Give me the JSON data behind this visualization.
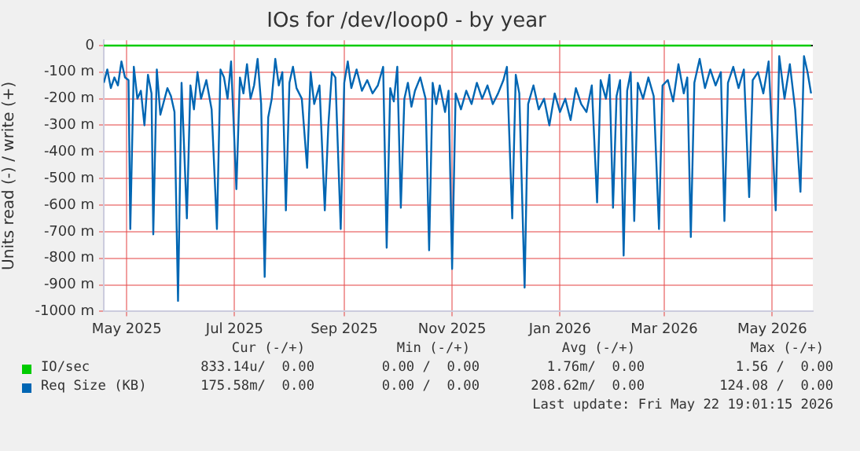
{
  "chart_data": {
    "type": "line",
    "title": "IOs for /dev/loop0 - by year",
    "ylabel": "Units read (-) / write (+)",
    "xlim": [
      "2025-04-18",
      "2026-05-24"
    ],
    "xticks": [
      {
        "value": "2025-05-01",
        "label": "May 2025"
      },
      {
        "value": "2025-07-01",
        "label": "Jul 2025"
      },
      {
        "value": "2025-09-01",
        "label": "Sep 2025"
      },
      {
        "value": "2025-11-01",
        "label": "Nov 2025"
      },
      {
        "value": "2026-01-01",
        "label": "Jan 2026"
      },
      {
        "value": "2026-03-01",
        "label": "Mar 2026"
      },
      {
        "value": "2026-05-01",
        "label": "May 2026"
      }
    ],
    "ylim": [
      -1000,
      20
    ],
    "yticks": [
      0,
      {
        "value": -100,
        "label": "-100 m"
      },
      {
        "value": -200,
        "label": "-200 m"
      },
      {
        "value": -300,
        "label": "-300 m"
      },
      {
        "value": -400,
        "label": "-400 m"
      },
      {
        "value": -500,
        "label": "-500 m"
      },
      {
        "value": -600,
        "label": "-600 m"
      },
      {
        "value": -700,
        "label": "-700 m"
      },
      {
        "value": -800,
        "label": "-800 m"
      },
      {
        "value": -900,
        "label": "-900 m"
      },
      {
        "value": -1000,
        "label": "-1000 m"
      }
    ],
    "grid": true,
    "legend": "bottom",
    "marker": "none",
    "line_style": "solid",
    "ref_lines": [
      {
        "axis": "y",
        "value": 0,
        "color": "#000000"
      }
    ],
    "series": [
      {
        "name": "IO/sec",
        "color": "#00cc00",
        "x": [
          "2025-04-18",
          "2026-05-23"
        ],
        "values": [
          0,
          0
        ]
      },
      {
        "name": "Req Size (KB)",
        "color": "#0066b3",
        "x": [
          "2025-04-18",
          "2025-04-20",
          "2025-04-22",
          "2025-04-24",
          "2025-04-26",
          "2025-04-28",
          "2025-04-30",
          "2025-05-02",
          "2025-05-03",
          "2025-05-05",
          "2025-05-07",
          "2025-05-09",
          "2025-05-11",
          "2025-05-13",
          "2025-05-15",
          "2025-05-16",
          "2025-05-18",
          "2025-05-20",
          "2025-05-22",
          "2025-05-24",
          "2025-05-26",
          "2025-05-28",
          "2025-05-30",
          "2025-06-01",
          "2025-06-04",
          "2025-06-06",
          "2025-06-08",
          "2025-06-10",
          "2025-06-12",
          "2025-06-15",
          "2025-06-18",
          "2025-06-21",
          "2025-06-23",
          "2025-06-25",
          "2025-06-27",
          "2025-06-29",
          "2025-07-02",
          "2025-07-04",
          "2025-07-06",
          "2025-07-08",
          "2025-07-10",
          "2025-07-12",
          "2025-07-14",
          "2025-07-16",
          "2025-07-18",
          "2025-07-20",
          "2025-07-22",
          "2025-07-24",
          "2025-07-26",
          "2025-07-28",
          "2025-07-30",
          "2025-08-01",
          "2025-08-03",
          "2025-08-05",
          "2025-08-08",
          "2025-08-11",
          "2025-08-13",
          "2025-08-15",
          "2025-08-18",
          "2025-08-21",
          "2025-08-23",
          "2025-08-25",
          "2025-08-27",
          "2025-08-30",
          "2025-09-01",
          "2025-09-03",
          "2025-09-05",
          "2025-09-08",
          "2025-09-11",
          "2025-09-14",
          "2025-09-17",
          "2025-09-20",
          "2025-09-23",
          "2025-09-25",
          "2025-09-27",
          "2025-09-29",
          "2025-10-01",
          "2025-10-03",
          "2025-10-05",
          "2025-10-07",
          "2025-10-09",
          "2025-10-11",
          "2025-10-14",
          "2025-10-17",
          "2025-10-19",
          "2025-10-21",
          "2025-10-23",
          "2025-10-25",
          "2025-10-28",
          "2025-10-30",
          "2025-11-01",
          "2025-11-03",
          "2025-11-06",
          "2025-11-09",
          "2025-11-12",
          "2025-11-15",
          "2025-11-18",
          "2025-11-21",
          "2025-11-24",
          "2025-11-27",
          "2025-11-30",
          "2025-12-02",
          "2025-12-05",
          "2025-12-07",
          "2025-12-09",
          "2025-12-12",
          "2025-12-14",
          "2025-12-17",
          "2025-12-20",
          "2025-12-23",
          "2025-12-26",
          "2025-12-29",
          "2026-01-01",
          "2026-01-04",
          "2026-01-07",
          "2026-01-10",
          "2026-01-13",
          "2026-01-16",
          "2026-01-19",
          "2026-01-22",
          "2026-01-24",
          "2026-01-27",
          "2026-01-29",
          "2026-01-31",
          "2026-02-02",
          "2026-02-04",
          "2026-02-06",
          "2026-02-08",
          "2026-02-10",
          "2026-02-12",
          "2026-02-14",
          "2026-02-17",
          "2026-02-20",
          "2026-02-23",
          "2026-02-26",
          "2026-02-28",
          "2026-03-03",
          "2026-03-06",
          "2026-03-09",
          "2026-03-12",
          "2026-03-14",
          "2026-03-16",
          "2026-03-18",
          "2026-03-21",
          "2026-03-24",
          "2026-03-27",
          "2026-03-30",
          "2026-04-02",
          "2026-04-04",
          "2026-04-06",
          "2026-04-09",
          "2026-04-12",
          "2026-04-15",
          "2026-04-18",
          "2026-04-20",
          "2026-04-23",
          "2026-04-26",
          "2026-04-29",
          "2026-05-03",
          "2026-05-05",
          "2026-05-08",
          "2026-05-11",
          "2026-05-14",
          "2026-05-17",
          "2026-05-19",
          "2026-05-21",
          "2026-05-23"
        ],
        "values": [
          -140,
          -90,
          -160,
          -120,
          -150,
          -60,
          -120,
          -130,
          -690,
          -80,
          -200,
          -170,
          -300,
          -110,
          -180,
          -710,
          -90,
          -260,
          -210,
          -160,
          -190,
          -250,
          -960,
          -140,
          -650,
          -150,
          -240,
          -100,
          -200,
          -130,
          -240,
          -690,
          -90,
          -120,
          -200,
          -60,
          -540,
          -120,
          -180,
          -70,
          -200,
          -150,
          -50,
          -220,
          -870,
          -270,
          -200,
          -50,
          -150,
          -100,
          -620,
          -140,
          -80,
          -160,
          -200,
          -460,
          -100,
          -220,
          -150,
          -620,
          -300,
          -100,
          -120,
          -690,
          -140,
          -60,
          -160,
          -90,
          -170,
          -130,
          -180,
          -150,
          -80,
          -760,
          -160,
          -210,
          -80,
          -610,
          -200,
          -140,
          -230,
          -170,
          -120,
          -200,
          -770,
          -140,
          -220,
          -150,
          -250,
          -170,
          -840,
          -180,
          -240,
          -170,
          -220,
          -140,
          -200,
          -150,
          -220,
          -180,
          -130,
          -80,
          -650,
          -110,
          -180,
          -910,
          -220,
          -150,
          -240,
          -200,
          -300,
          -180,
          -250,
          -200,
          -280,
          -160,
          -220,
          -250,
          -150,
          -590,
          -130,
          -200,
          -110,
          -610,
          -190,
          -130,
          -790,
          -170,
          -100,
          -660,
          -140,
          -200,
          -120,
          -190,
          -690,
          -150,
          -130,
          -210,
          -70,
          -180,
          -120,
          -720,
          -140,
          -50,
          -160,
          -90,
          -150,
          -100,
          -660,
          -140,
          -80,
          -160,
          -90,
          -570,
          -130,
          -100,
          -180,
          -60,
          -620,
          -40,
          -200,
          -70,
          -240,
          -550,
          -40,
          -100,
          -180
        ]
      }
    ],
    "annotations": [
      "Cur (-/+)",
      "Min (-/+)",
      "Avg (-/+)",
      "Max (-/+)",
      "833.14u/  0.00",
      "0.00 /  0.00",
      "1.76m/  0.00",
      "1.56 /  0.00",
      "175.58m/  0.00",
      "0.00 /  0.00",
      "208.62m/  0.00",
      "124.08 /  0.00",
      "Last update: Fri May 22 19:01:15 2026"
    ]
  }
}
